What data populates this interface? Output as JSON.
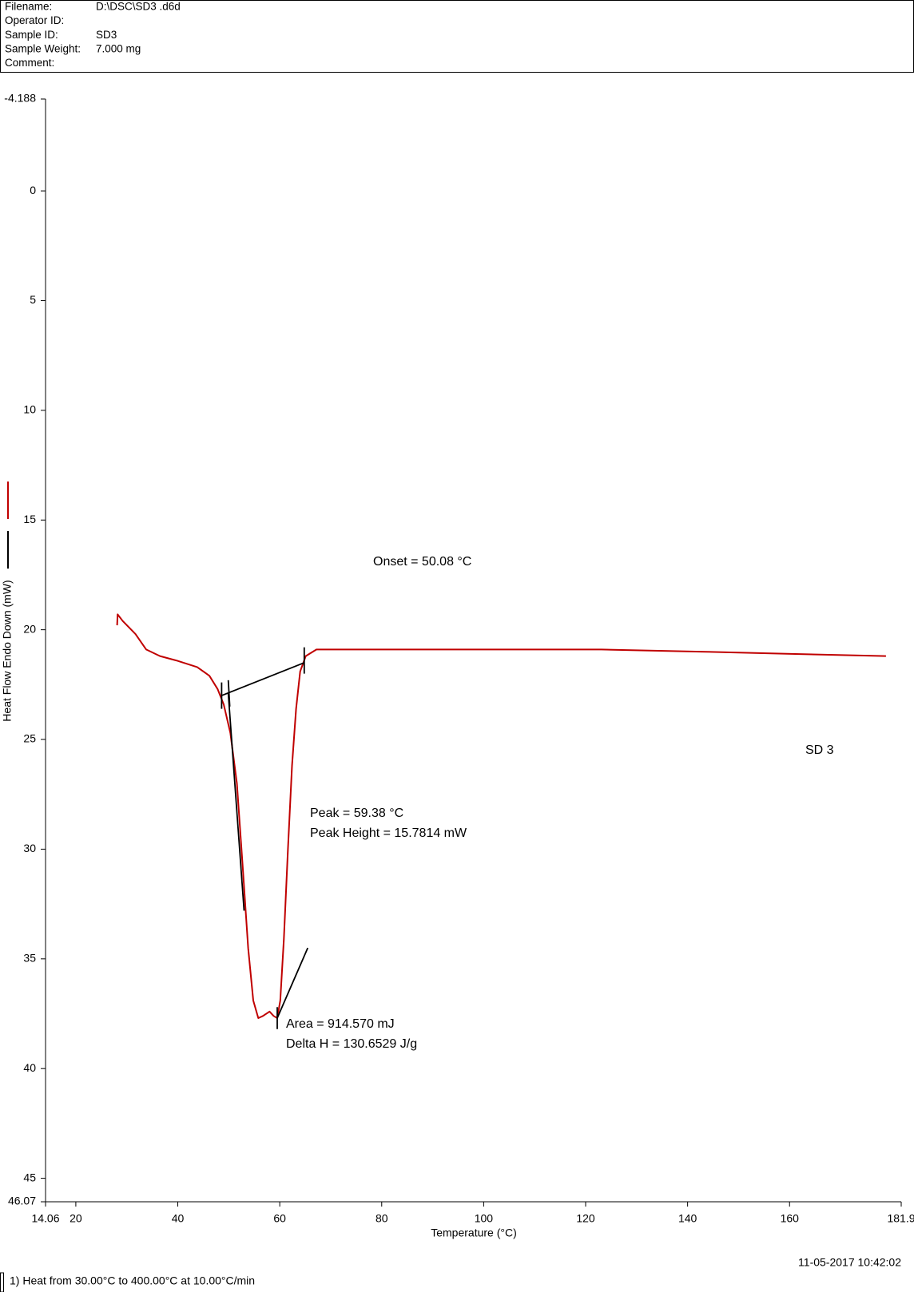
{
  "chart_data": {
    "type": "line",
    "info": [
      {
        "label": "Filename:",
        "value": "D:\\DSC\\SD3 .d6d"
      },
      {
        "label": "Operator ID:",
        "value": ""
      },
      {
        "label": "Sample ID:",
        "value": "SD3"
      },
      {
        "label": "Sample Weight:",
        "value": "7.000 mg"
      },
      {
        "label": "Comment:",
        "value": ""
      }
    ],
    "x_label": "Temperature (°C)",
    "y_label": "Heat Flow Endo Down (mW)",
    "xlim": [
      14.06,
      181.9
    ],
    "xticks": [
      14.06,
      20,
      40,
      60,
      80,
      100,
      120,
      140,
      160,
      181.9
    ],
    "ylim": [
      -4.188,
      46.07
    ],
    "yticks": [
      -4.188,
      0,
      5,
      10,
      15,
      20,
      25,
      30,
      35,
      40,
      45,
      46.07
    ],
    "series": [
      {
        "color": "#c00000",
        "x": [
          28.1,
          28.2,
          29.2,
          31.7,
          33.8,
          36.5,
          39.7,
          43.8,
          46.2,
          47.8,
          49.0,
          50.3,
          51.6,
          52.7,
          53.8,
          54.8,
          55.8,
          56.7,
          58.0,
          58.8,
          59.5,
          60.1,
          60.8,
          61.6,
          62.4,
          63.2,
          64.0,
          65.1,
          67.2,
          72.9,
          102.0,
          123.1,
          142.5,
          160.3,
          178.9
        ],
        "values": [
          19.8,
          19.3,
          19.6,
          20.2,
          20.9,
          21.2,
          21.4,
          21.7,
          22.1,
          22.7,
          23.4,
          24.7,
          27.0,
          30.7,
          34.5,
          36.9,
          37.7,
          37.6,
          37.4,
          37.6,
          37.7,
          36.9,
          34.1,
          30.0,
          26.2,
          23.6,
          21.9,
          21.2,
          20.9,
          20.9,
          20.9,
          20.9,
          21.0,
          21.1,
          21.2
        ]
      },
      {
        "color": "#000000",
        "x": [
          48.6,
          64.8,
          null,
          49.9,
          53.0,
          null,
          59.5,
          65.5,
          null,
          48.6,
          48.6,
          null,
          49.9,
          50.2,
          null,
          64.8,
          64.8,
          null,
          59.5,
          59.5
        ],
        "values": [
          23.0,
          21.5,
          null,
          22.9,
          32.8,
          null,
          37.7,
          34.5,
          null,
          22.4,
          23.6,
          null,
          22.3,
          23.5,
          null,
          20.8,
          22.0,
          null,
          37.2,
          38.2
        ]
      }
    ],
    "annotations": [
      "Onset = 50.08 °C",
      "Peak = 59.38 °C",
      "Peak Height = 15.7814 mW",
      "Area = 914.570 mJ",
      "Delta H = 130.6529 J/g",
      "SD 3"
    ],
    "timestamp": "11-05-2017 10:42:02",
    "method": "1)  Heat from 30.00°C to 400.00°C at 10.00°C/min"
  }
}
